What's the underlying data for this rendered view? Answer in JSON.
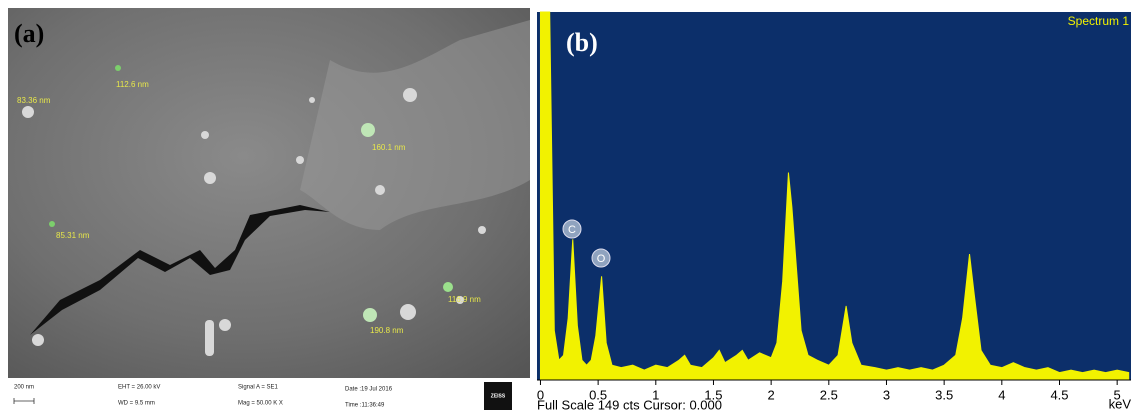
{
  "sem_panel": {
    "label": "(a)",
    "annotations": [
      "83.36 nm",
      "112.6 nm",
      "160.1 nm",
      "85.31 nm",
      "116.9 nm",
      "190.8 nm"
    ],
    "info_bar": {
      "scale": "200 nm",
      "eht": "EHT = 26.00 kV",
      "wd": "WD = 9.5 mm",
      "signal": "Signal A = SE1",
      "mag": "Mag = 50.00 K X",
      "date": "Date :19 Jul 2016",
      "time": "Time :11:36:49",
      "brand": "ZEISS"
    }
  },
  "chart_data": {
    "type": "area",
    "panel_label": "(b)",
    "title": "Spectrum 1",
    "xlabel": "keV",
    "footer": "Full Scale 149 cts Cursor: 0.000",
    "peak_labels": [
      "C",
      "O"
    ],
    "color": "#f2f200",
    "background": "#0c2f6a",
    "x": [
      0.0,
      0.04,
      0.08,
      0.12,
      0.16,
      0.2,
      0.24,
      0.28,
      0.32,
      0.36,
      0.4,
      0.44,
      0.48,
      0.53,
      0.57,
      0.62,
      0.7,
      0.8,
      0.9,
      1.0,
      1.1,
      1.2,
      1.25,
      1.3,
      1.4,
      1.5,
      1.55,
      1.6,
      1.7,
      1.75,
      1.8,
      1.9,
      2.0,
      2.05,
      2.1,
      2.15,
      2.18,
      2.22,
      2.26,
      2.32,
      2.4,
      2.5,
      2.58,
      2.65,
      2.7,
      2.78,
      2.9,
      3.0,
      3.1,
      3.2,
      3.3,
      3.4,
      3.5,
      3.6,
      3.66,
      3.72,
      3.76,
      3.82,
      3.9,
      4.0,
      4.1,
      4.2,
      4.3,
      4.4,
      4.5,
      4.6,
      4.7,
      4.8,
      4.9,
      5.0,
      5.1
    ],
    "values": [
      149,
      149,
      149,
      20,
      8,
      10,
      25,
      57,
      22,
      8,
      6,
      8,
      18,
      42,
      15,
      6,
      5,
      6,
      4,
      6,
      5,
      8,
      10,
      6,
      5,
      9,
      12,
      7,
      10,
      12,
      8,
      11,
      9,
      15,
      40,
      84,
      70,
      45,
      20,
      10,
      8,
      6,
      10,
      30,
      15,
      6,
      5,
      4,
      5,
      4,
      5,
      4,
      6,
      10,
      25,
      51,
      35,
      12,
      6,
      5,
      7,
      5,
      4,
      5,
      3,
      4,
      3,
      4,
      3,
      4,
      3
    ],
    "xlim": [
      -0.03,
      5.12
    ],
    "ylim": [
      0,
      149
    ],
    "xticks": [
      0,
      0.5,
      1,
      1.5,
      2,
      2.5,
      3,
      3.5,
      4,
      4.5,
      5
    ]
  }
}
